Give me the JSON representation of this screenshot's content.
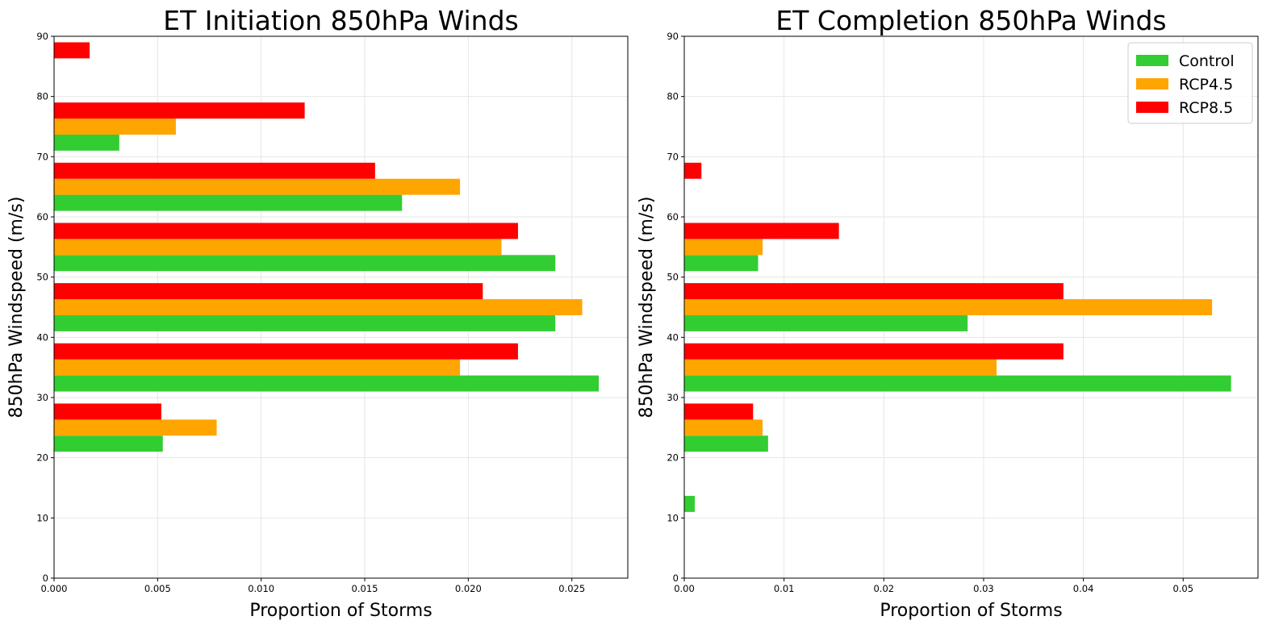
{
  "chart_data": [
    {
      "type": "bar",
      "orientation": "horizontal",
      "title": "ET Initiation 850hPa Winds",
      "xlabel": "Proportion of Storms",
      "ylabel": "850hPa Windspeed (m/s)",
      "xlim": [
        0,
        0.0277
      ],
      "ylim": [
        0,
        90
      ],
      "xticks": [
        "0.000",
        "0.005",
        "0.010",
        "0.015",
        "0.020",
        "0.025"
      ],
      "xtick_values": [
        0,
        0.005,
        0.01,
        0.015,
        0.02,
        0.025
      ],
      "yticks": [
        "0",
        "10",
        "20",
        "30",
        "40",
        "50",
        "60",
        "70",
        "80",
        "90"
      ],
      "ytick_values": [
        0,
        10,
        20,
        30,
        40,
        50,
        60,
        70,
        80,
        90
      ],
      "grid": true,
      "legend": null,
      "bin_edges": [
        0,
        10,
        20,
        30,
        40,
        50,
        60,
        70,
        80,
        90
      ],
      "series": [
        {
          "name": "Control",
          "color": "#32cd32",
          "values": [
            0,
            0,
            0.00525,
            0.0263,
            0.0242,
            0.0242,
            0.0168,
            0.00315,
            0
          ]
        },
        {
          "name": "RCP4.5",
          "color": "#ffa500",
          "values": [
            0,
            0,
            0.00785,
            0.0196,
            0.0255,
            0.0216,
            0.0196,
            0.00588,
            0
          ]
        },
        {
          "name": "RCP8.5",
          "color": "#ff0000",
          "values": [
            0,
            0,
            0.00518,
            0.0224,
            0.0207,
            0.0224,
            0.0155,
            0.0121,
            0.00172
          ]
        }
      ]
    },
    {
      "type": "bar",
      "orientation": "horizontal",
      "title": "ET Completion 850hPa Winds",
      "xlabel": "Proportion of Storms",
      "ylabel": "850hPa Windspeed (m/s)",
      "xlim": [
        0,
        0.0575
      ],
      "ylim": [
        0,
        90
      ],
      "xticks": [
        "0.00",
        "0.01",
        "0.02",
        "0.03",
        "0.04",
        "0.05"
      ],
      "xtick_values": [
        0,
        0.01,
        0.02,
        0.03,
        0.04,
        0.05
      ],
      "yticks": [
        "0",
        "10",
        "20",
        "30",
        "40",
        "50",
        "60",
        "70",
        "80",
        "90"
      ],
      "ytick_values": [
        0,
        10,
        20,
        30,
        40,
        50,
        60,
        70,
        80,
        90
      ],
      "grid": true,
      "legend": "top-right",
      "bin_edges": [
        0,
        10,
        20,
        30,
        40,
        50,
        60,
        70,
        80,
        90
      ],
      "series": [
        {
          "name": "Control",
          "color": "#32cd32",
          "values": [
            0,
            0.00105,
            0.0084,
            0.0548,
            0.0284,
            0.0074,
            0,
            0,
            0
          ]
        },
        {
          "name": "RCP4.5",
          "color": "#ffa500",
          "values": [
            0,
            0,
            0.00785,
            0.0313,
            0.0529,
            0.00785,
            0,
            0,
            0
          ]
        },
        {
          "name": "RCP8.5",
          "color": "#ff0000",
          "values": [
            0,
            0,
            0.0069,
            0.038,
            0.038,
            0.0155,
            0.00172,
            0,
            0
          ]
        }
      ]
    }
  ]
}
